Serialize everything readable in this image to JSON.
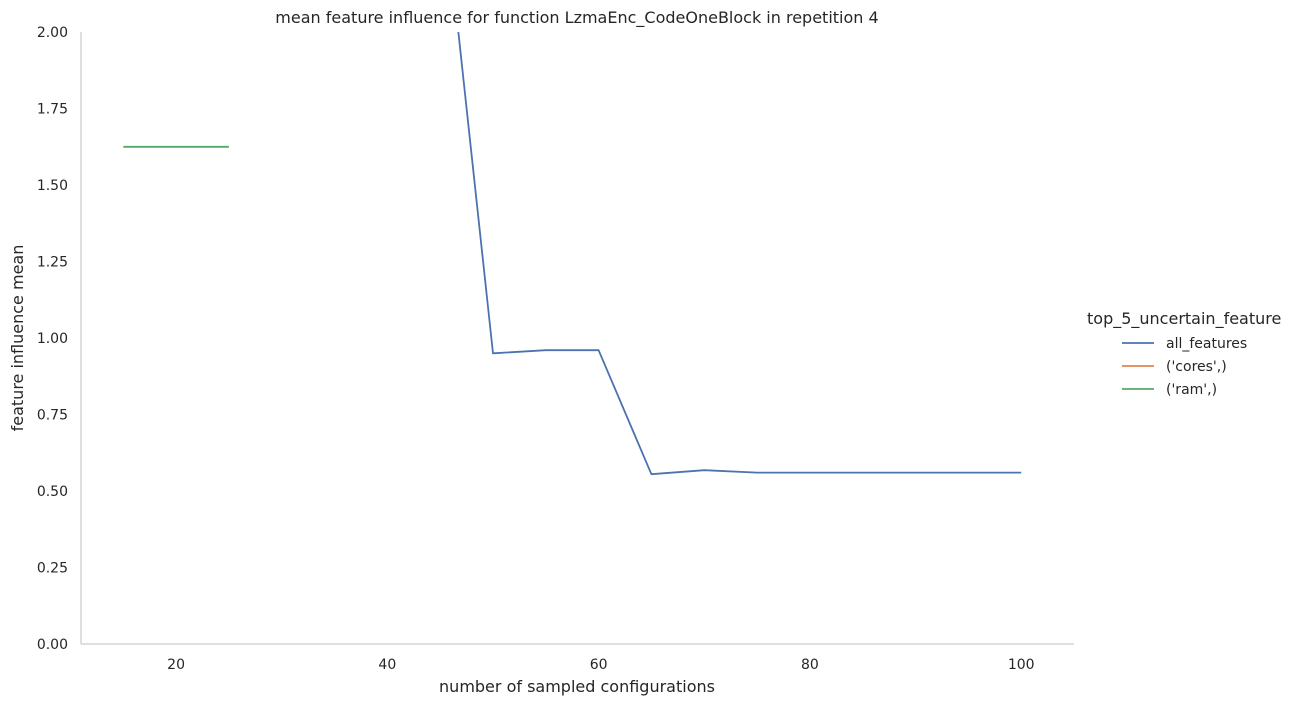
{
  "chart_data": {
    "type": "line",
    "title": "mean feature influence for function LzmaEnc_CodeOneBlock in repetition 4",
    "xlabel": "number of sampled configurations",
    "ylabel": "feature influence mean",
    "xlim": [
      11,
      105
    ],
    "ylim": [
      0,
      2.0
    ],
    "x_ticks": [
      20,
      40,
      60,
      80,
      100
    ],
    "y_ticks": [
      0.0,
      0.25,
      0.5,
      0.75,
      1.0,
      1.25,
      1.5,
      1.75,
      2.0
    ],
    "y_tick_labels": [
      "0.00",
      "0.25",
      "0.50",
      "0.75",
      "1.00",
      "1.25",
      "1.50",
      "1.75",
      "2.00"
    ],
    "grid": false,
    "legend": {
      "title": "top_5_uncertain_feature",
      "placement": "right"
    },
    "series": [
      {
        "name": "all_features",
        "color": "#4c72b0",
        "x": [
          45,
          50,
          55,
          60,
          65,
          70,
          75,
          80,
          85,
          90,
          95,
          100
        ],
        "y": [
          2.55,
          0.95,
          0.96,
          0.96,
          0.555,
          0.568,
          0.56,
          0.56,
          0.56,
          0.56,
          0.56,
          0.56
        ]
      },
      {
        "name": "('cores',)",
        "color": "#dd8452",
        "x": [],
        "y": []
      },
      {
        "name": "('ram',)",
        "color": "#55a868",
        "x": [
          15,
          20,
          25
        ],
        "y": [
          1.625,
          1.625,
          1.625
        ]
      }
    ]
  }
}
